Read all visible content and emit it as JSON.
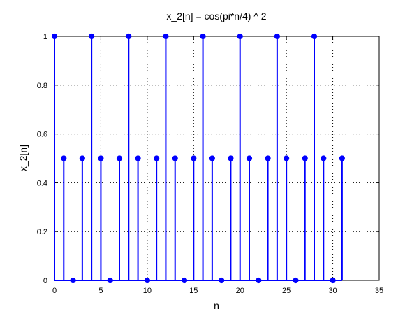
{
  "chart_data": {
    "type": "stem",
    "title": "x_2[n] = cos(pi*n/4) ^ 2",
    "xlabel": "n",
    "ylabel": "x_2[n]",
    "xlim": [
      0,
      35
    ],
    "ylim": [
      0,
      1
    ],
    "xticks": [
      0,
      5,
      10,
      15,
      20,
      25,
      30,
      35
    ],
    "yticks": [
      0,
      0.2,
      0.4,
      0.6,
      0.8,
      1
    ],
    "grid": true,
    "color": "#0000ff",
    "series": [
      {
        "x": [
          0,
          1,
          2,
          3,
          4,
          5,
          6,
          7,
          8,
          9,
          10,
          11,
          12,
          13,
          14,
          15,
          16,
          17,
          18,
          19,
          20,
          21,
          22,
          23,
          24,
          25,
          26,
          27,
          28,
          29,
          30,
          31
        ],
        "values": [
          1,
          0.5,
          0,
          0.5,
          1,
          0.5,
          0,
          0.5,
          1,
          0.5,
          0,
          0.5,
          1,
          0.5,
          0,
          0.5,
          1,
          0.5,
          0,
          0.5,
          1,
          0.5,
          0,
          0.5,
          1,
          0.5,
          0,
          0.5,
          1,
          0.5,
          0,
          0.5
        ]
      }
    ]
  }
}
